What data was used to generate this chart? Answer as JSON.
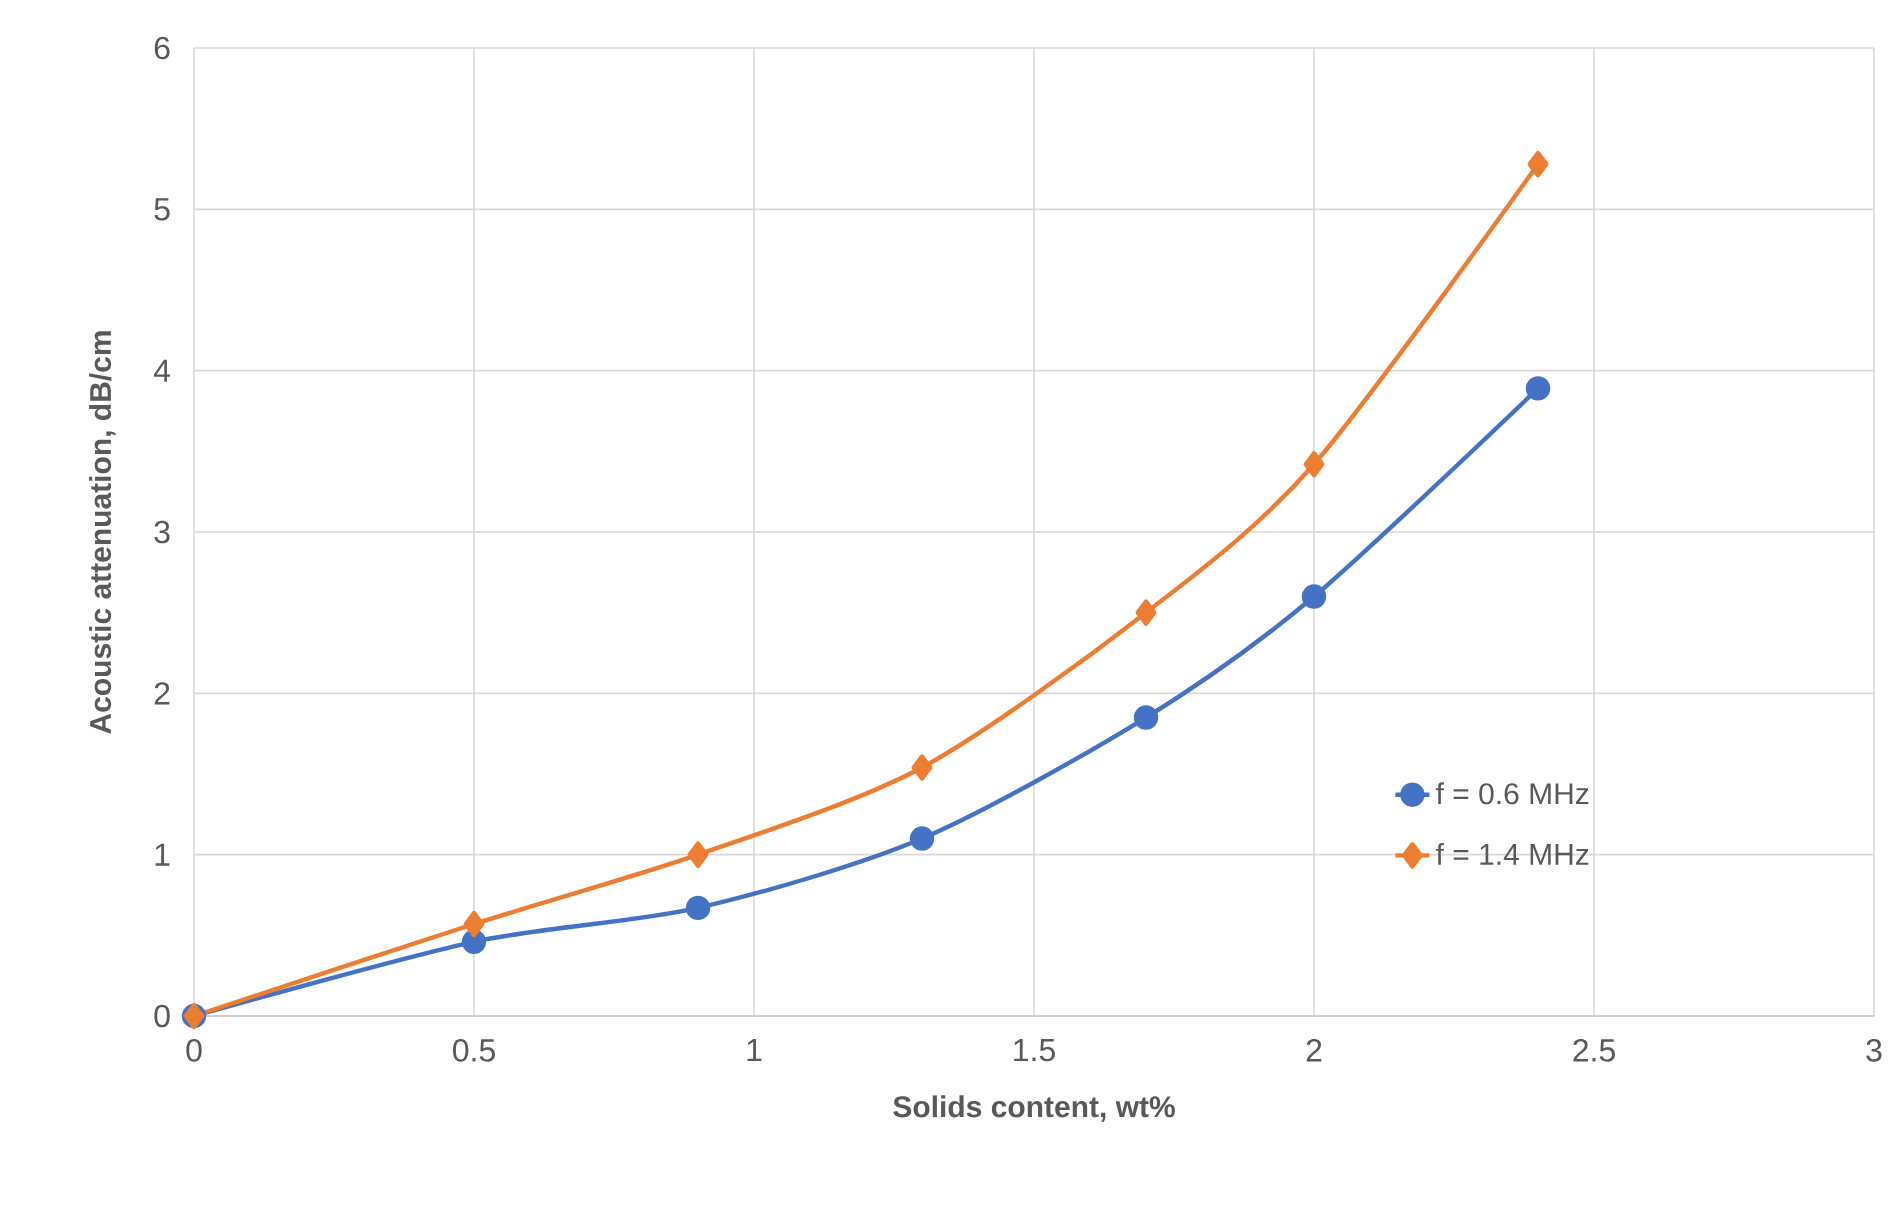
{
  "chart_data": {
    "type": "line",
    "xlabel": "Solids content, wt%",
    "ylabel": "Acoustic attenuation, dB/cm",
    "xlim": [
      0,
      3
    ],
    "ylim": [
      0,
      6
    ],
    "xticks": [
      0,
      0.5,
      1,
      1.5,
      2,
      2.5,
      3
    ],
    "yticks": [
      0,
      1,
      2,
      3,
      4,
      5,
      6
    ],
    "grid": true,
    "legend": "bottom right",
    "line_style": "solid",
    "series": [
      {
        "name": "f = 0.6 MHz",
        "color": "#4472c4",
        "marker": "circle",
        "x": [
          0,
          0.5,
          0.9,
          1.3,
          1.7,
          2.0,
          2.4
        ],
        "values": [
          0,
          0.46,
          0.67,
          1.1,
          1.85,
          2.6,
          3.89
        ]
      },
      {
        "name": "f = 1.4 MHz",
        "color": "#ed7d31",
        "marker": "diamond",
        "x": [
          0,
          0.5,
          0.9,
          1.3,
          1.7,
          2.0,
          2.4
        ],
        "values": [
          0,
          0.57,
          1.0,
          1.54,
          2.5,
          3.42,
          5.28
        ]
      }
    ]
  }
}
